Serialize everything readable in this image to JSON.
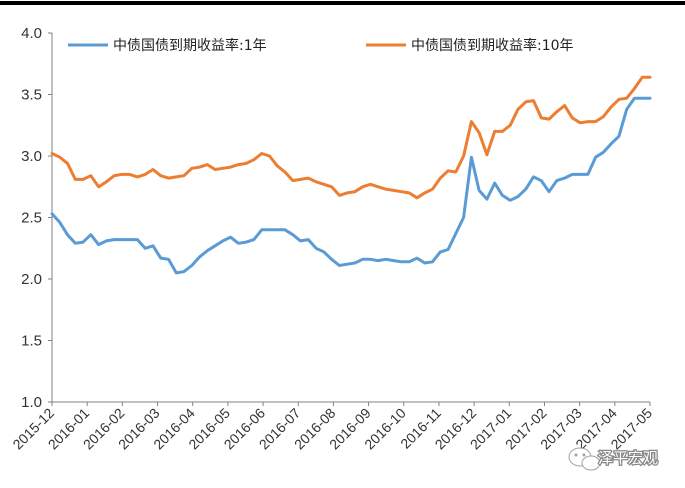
{
  "chart_data": {
    "type": "line",
    "title": "",
    "xlabel": "",
    "ylabel": "",
    "ylim": [
      1.0,
      4.0
    ],
    "yticks": [
      "1.0",
      "1.5",
      "2.0",
      "2.5",
      "3.0",
      "3.5",
      "4.0"
    ],
    "grid": false,
    "legend_position": "top",
    "x_tick_labels": [
      "2015-12",
      "2016-01",
      "2016-02",
      "2016-03",
      "2016-04",
      "2016-05",
      "2016-06",
      "2016-07",
      "2016-08",
      "2016-09",
      "2016-10",
      "2016-11",
      "2016-12",
      "2017-01",
      "2017-02",
      "2017-03",
      "2017-04",
      "2017-05"
    ],
    "x": [
      "2015-12-01",
      "2015-12-08",
      "2015-12-15",
      "2015-12-22",
      "2015-12-29",
      "2016-01-05",
      "2016-01-12",
      "2016-01-19",
      "2016-01-26",
      "2016-02-02",
      "2016-02-09",
      "2016-02-16",
      "2016-02-23",
      "2016-03-01",
      "2016-03-08",
      "2016-03-15",
      "2016-03-22",
      "2016-03-29",
      "2016-04-05",
      "2016-04-12",
      "2016-04-19",
      "2016-04-26",
      "2016-05-03",
      "2016-05-10",
      "2016-05-17",
      "2016-05-24",
      "2016-05-31",
      "2016-06-07",
      "2016-06-14",
      "2016-06-21",
      "2016-06-28",
      "2016-07-05",
      "2016-07-12",
      "2016-07-19",
      "2016-07-26",
      "2016-08-02",
      "2016-08-09",
      "2016-08-16",
      "2016-08-23",
      "2016-08-30",
      "2016-09-06",
      "2016-09-13",
      "2016-09-20",
      "2016-09-27",
      "2016-10-04",
      "2016-10-11",
      "2016-10-18",
      "2016-10-25",
      "2016-11-01",
      "2016-11-08",
      "2016-11-15",
      "2016-11-22",
      "2016-11-29",
      "2016-12-06",
      "2016-12-13",
      "2016-12-20",
      "2016-12-27",
      "2017-01-03",
      "2017-01-10",
      "2017-01-17",
      "2017-01-24",
      "2017-01-31",
      "2017-02-07",
      "2017-02-14",
      "2017-02-21",
      "2017-02-28",
      "2017-03-07",
      "2017-03-14",
      "2017-03-21",
      "2017-03-28",
      "2017-04-04",
      "2017-04-11",
      "2017-04-18",
      "2017-04-25",
      "2017-05-02",
      "2017-05-09",
      "2017-05-16",
      "2017-05-23"
    ],
    "series": [
      {
        "name": "中债国债到期收益率:1年",
        "color": "#5B9BD5",
        "values": [
          2.53,
          2.46,
          2.36,
          2.29,
          2.3,
          2.36,
          2.28,
          2.31,
          2.32,
          2.32,
          2.32,
          2.32,
          2.25,
          2.27,
          2.17,
          2.16,
          2.05,
          2.06,
          2.11,
          2.18,
          2.23,
          2.27,
          2.31,
          2.34,
          2.29,
          2.3,
          2.32,
          2.4,
          2.4,
          2.4,
          2.4,
          2.36,
          2.31,
          2.32,
          2.25,
          2.22,
          2.16,
          2.11,
          2.12,
          2.13,
          2.16,
          2.16,
          2.15,
          2.16,
          2.15,
          2.14,
          2.14,
          2.17,
          2.13,
          2.14,
          2.22,
          2.24,
          2.37,
          2.5,
          2.99,
          2.72,
          2.65,
          2.78,
          2.68,
          2.64,
          2.67,
          2.73,
          2.83,
          2.8,
          2.71,
          2.8,
          2.82,
          2.85,
          2.85,
          2.85,
          2.99,
          3.03,
          3.1,
          3.16,
          3.38,
          3.47,
          3.47,
          3.47
        ]
      },
      {
        "name": "中债国债到期收益率:10年",
        "color": "#ED7D31",
        "values": [
          3.02,
          2.99,
          2.94,
          2.81,
          2.81,
          2.84,
          2.75,
          2.79,
          2.84,
          2.85,
          2.85,
          2.83,
          2.85,
          2.89,
          2.84,
          2.82,
          2.83,
          2.84,
          2.9,
          2.91,
          2.93,
          2.89,
          2.9,
          2.91,
          2.93,
          2.94,
          2.97,
          3.02,
          3.0,
          2.92,
          2.87,
          2.8,
          2.81,
          2.82,
          2.79,
          2.77,
          2.75,
          2.68,
          2.7,
          2.71,
          2.75,
          2.77,
          2.75,
          2.73,
          2.72,
          2.71,
          2.7,
          2.66,
          2.7,
          2.73,
          2.82,
          2.88,
          2.87,
          3.0,
          3.28,
          3.19,
          3.01,
          3.2,
          3.2,
          3.25,
          3.38,
          3.44,
          3.45,
          3.31,
          3.3,
          3.36,
          3.41,
          3.31,
          3.27,
          3.28,
          3.28,
          3.32,
          3.4,
          3.46,
          3.47,
          3.55,
          3.64,
          3.64
        ]
      }
    ]
  },
  "watermark": {
    "text": "泽平宏观",
    "icon": "wechat-icon"
  }
}
